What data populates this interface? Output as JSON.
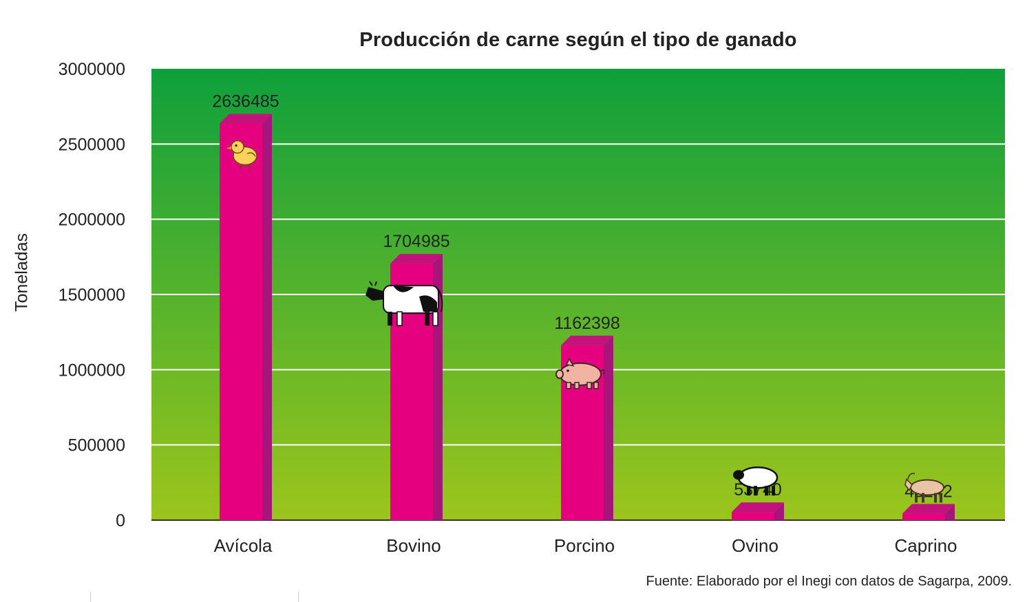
{
  "chart_data": {
    "type": "bar",
    "title": "Producción de carne según el tipo de ganado",
    "ylabel": "Toneladas",
    "xlabel": "",
    "categories": [
      "Avícola",
      "Bovino",
      "Porcino",
      "Ovino",
      "Caprino"
    ],
    "values": [
      2636485,
      1704985,
      1162398,
      53740,
      43242
    ],
    "value_labels": [
      "2636485",
      "1704985",
      "1162398",
      "53740",
      "43242"
    ],
    "yticks": [
      0,
      500000,
      1000000,
      1500000,
      2000000,
      2500000,
      3000000
    ],
    "ytick_labels": [
      "0",
      "500000",
      "1000000",
      "1500000",
      "2000000",
      "2500000",
      "3000000"
    ],
    "ylim": [
      0,
      3000000
    ],
    "grid": true,
    "icons": [
      "chick-icon",
      "cow-icon",
      "pig-icon",
      "sheep-icon",
      "goat-icon"
    ],
    "colors": {
      "bar_front": "#e4007f",
      "bar_side": "#a5157a",
      "bar_top": "#c4127d",
      "background_top": "#0ea03c",
      "background_bottom": "#9cc51c",
      "gridline": "#ffffff"
    },
    "source": "Fuente: Elaborado por el Inegi con datos de Sagarpa, 2009."
  }
}
